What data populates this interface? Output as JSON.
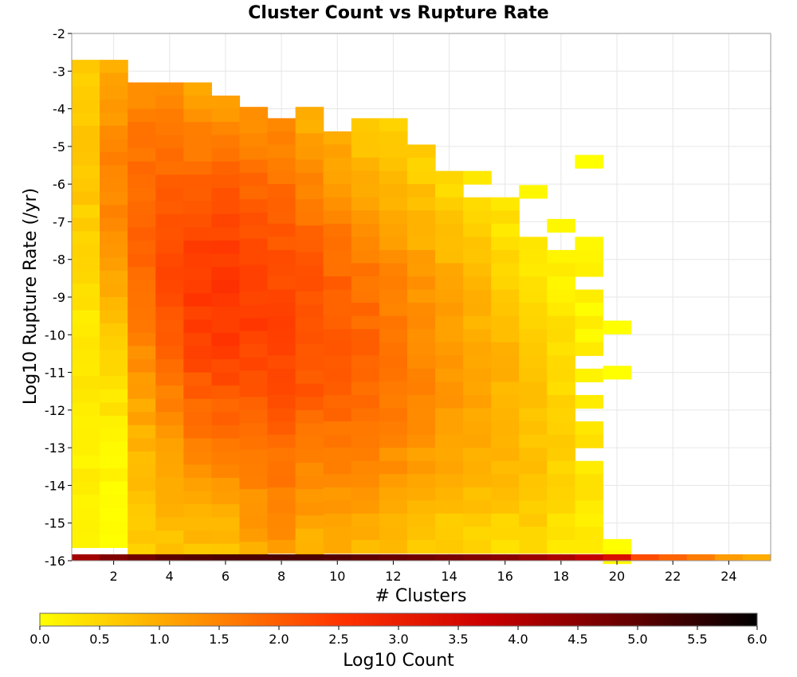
{
  "chart_data": {
    "type": "heatmap",
    "title": "Cluster Count vs Rupture Rate",
    "xlabel": "# Clusters",
    "ylabel": "Log10 Rupture Rate (/yr)",
    "xlim": [
      0.5,
      25.5
    ],
    "ylim": [
      -16,
      -2
    ],
    "bin_height": 0.35,
    "x_ticks": [
      2,
      4,
      6,
      8,
      10,
      12,
      14,
      16,
      18,
      20,
      22,
      24
    ],
    "y_ticks": [
      -2,
      -3,
      -4,
      -5,
      -6,
      -7,
      -8,
      -9,
      -10,
      -11,
      -12,
      -13,
      -14,
      -15,
      -16
    ],
    "grid": true,
    "columns": [
      {
        "x": 1,
        "top": -2.7,
        "bottom": -16.0,
        "peak": 0.7,
        "peak_y": -4.8,
        "spread": 4.0,
        "edge": 0.2
      },
      {
        "x": 2,
        "top": -2.7,
        "bottom": -16.0,
        "peak": 1.5,
        "peak_y": -6.0,
        "spread": 4.5,
        "edge": 0.0
      },
      {
        "x": 3,
        "top": -3.3,
        "bottom": -16.0,
        "peak": 1.9,
        "peak_y": -7.0,
        "spread": 5.0,
        "edge": 0.6
      },
      {
        "x": 4,
        "top": -3.3,
        "bottom": -16.0,
        "peak": 2.2,
        "peak_y": -8.0,
        "spread": 5.0,
        "edge": 0.6
      },
      {
        "x": 5,
        "top": -3.3,
        "bottom": -16.0,
        "peak": 2.45,
        "peak_y": -8.8,
        "spread": 5.5,
        "edge": 0.3
      },
      {
        "x": 6,
        "top": -3.65,
        "bottom": -16.0,
        "peak": 2.5,
        "peak_y": -9.0,
        "spread": 5.5,
        "edge": 0.3
      },
      {
        "x": 7,
        "top": -3.95,
        "bottom": -16.0,
        "peak": 2.4,
        "peak_y": -9.2,
        "spread": 5.5,
        "edge": 0.6
      },
      {
        "x": 8,
        "top": -4.25,
        "bottom": -16.0,
        "peak": 2.3,
        "peak_y": -9.6,
        "spread": 5.5,
        "edge": 0.8
      },
      {
        "x": 9,
        "top": -3.95,
        "bottom": -16.0,
        "peak": 2.2,
        "peak_y": -9.8,
        "spread": 5.5,
        "edge": 0.3
      },
      {
        "x": 10,
        "top": -4.6,
        "bottom": -16.0,
        "peak": 2.05,
        "peak_y": -10.2,
        "spread": 5.5,
        "edge": 0.3
      },
      {
        "x": 11,
        "top": -4.25,
        "bottom": -16.0,
        "peak": 1.9,
        "peak_y": -10.5,
        "spread": 5.3,
        "edge": 0.2
      },
      {
        "x": 12,
        "top": -4.25,
        "bottom": -16.0,
        "peak": 1.7,
        "peak_y": -10.6,
        "spread": 5.2,
        "edge": 0.2
      },
      {
        "x": 13,
        "top": -4.95,
        "bottom": -16.0,
        "peak": 1.45,
        "peak_y": -10.8,
        "spread": 5.0,
        "edge": 0.2
      },
      {
        "x": 14,
        "top": -5.65,
        "bottom": -16.0,
        "peak": 1.25,
        "peak_y": -11.0,
        "spread": 4.8,
        "edge": 0.1
      },
      {
        "x": 15,
        "top": -5.65,
        "bottom": -16.0,
        "peak": 1.1,
        "peak_y": -11.3,
        "spread": 4.6,
        "edge": 0.1
      },
      {
        "x": 16,
        "top": -6.0,
        "bottom": -16.0,
        "peak": 0.95,
        "peak_y": -11.8,
        "spread": 4.2,
        "edge": 0.1
      },
      {
        "x": 17,
        "top": -6.35,
        "bottom": -16.0,
        "peak": 0.75,
        "peak_y": -12.4,
        "spread": 4.0,
        "edge": 0.1
      },
      {
        "x": 18,
        "top": -7.75,
        "bottom": -16.0,
        "peak": 0.55,
        "peak_y": -12.8,
        "spread": 3.5,
        "edge": 0.1
      },
      {
        "x": 19,
        "top": -7.4,
        "bottom": -16.0,
        "peak": 0.3,
        "peak_y": -13.5,
        "spread": 3.0,
        "edge": 0.1
      }
    ],
    "gaps": [
      {
        "x": 16,
        "y": -6.2
      },
      {
        "x": 15,
        "y": -6.2
      },
      {
        "x": 19,
        "y": -8.6
      },
      {
        "x": 19,
        "y": -10.8
      },
      {
        "x": 19,
        "y": -11.5
      },
      {
        "x": 19,
        "y": -12.2
      },
      {
        "x": 19,
        "y": -13.0
      },
      {
        "x": 18,
        "y": -6.6
      },
      {
        "x": 18,
        "y": -6.9
      },
      {
        "x": 18,
        "y": -7.3
      },
      {
        "x": 17,
        "y": -6.6
      },
      {
        "x": 17,
        "y": -7.0
      },
      {
        "x": 17,
        "y": -7.3
      }
    ],
    "extra_cells": [
      {
        "x": 17,
        "y": -6.2,
        "v": 0.1
      },
      {
        "x": 18,
        "y": -7.1,
        "v": 0.1
      },
      {
        "x": 19,
        "y": -5.4,
        "v": 0.0
      },
      {
        "x": 20,
        "y": -9.8,
        "v": 0.0
      },
      {
        "x": 20,
        "y": -11.0,
        "v": 0.0
      },
      {
        "x": 20,
        "y": -15.6,
        "v": 0.0
      },
      {
        "x": 20,
        "y": -15.9,
        "v": 0.1
      }
    ],
    "bottom_row": [
      {
        "x": 1,
        "v": 4.2
      },
      {
        "x": 2,
        "v": 4.6
      },
      {
        "x": 3,
        "v": 4.8
      },
      {
        "x": 4,
        "v": 5.0
      },
      {
        "x": 5,
        "v": 5.1
      },
      {
        "x": 6,
        "v": 5.2
      },
      {
        "x": 7,
        "v": 5.2
      },
      {
        "x": 8,
        "v": 5.2
      },
      {
        "x": 9,
        "v": 5.2
      },
      {
        "x": 10,
        "v": 5.1
      },
      {
        "x": 11,
        "v": 5.0
      },
      {
        "x": 12,
        "v": 4.9
      },
      {
        "x": 13,
        "v": 4.8
      },
      {
        "x": 14,
        "v": 4.7
      },
      {
        "x": 15,
        "v": 4.6
      },
      {
        "x": 16,
        "v": 4.5
      },
      {
        "x": 17,
        "v": 4.3
      },
      {
        "x": 18,
        "v": 4.1
      },
      {
        "x": 19,
        "v": 3.8
      },
      {
        "x": 20,
        "v": 3.4
      },
      {
        "x": 21,
        "v": 2.2
      },
      {
        "x": 22,
        "v": 1.9
      },
      {
        "x": 23,
        "v": 1.6
      },
      {
        "x": 24,
        "v": 1.2
      },
      {
        "x": 25,
        "v": 1.0
      }
    ],
    "colorbar": {
      "label": "Log10 Count",
      "range": [
        0.0,
        6.0
      ],
      "ticks": [
        "0.0",
        "0.5",
        "1.0",
        "1.5",
        "2.0",
        "2.5",
        "3.0",
        "3.5",
        "4.0",
        "4.5",
        "5.0",
        "5.5",
        "6.0"
      ],
      "colors": [
        "#ffff00",
        "#ffa500",
        "#ff3300",
        "#cc0000",
        "#660000",
        "#000000"
      ]
    }
  }
}
